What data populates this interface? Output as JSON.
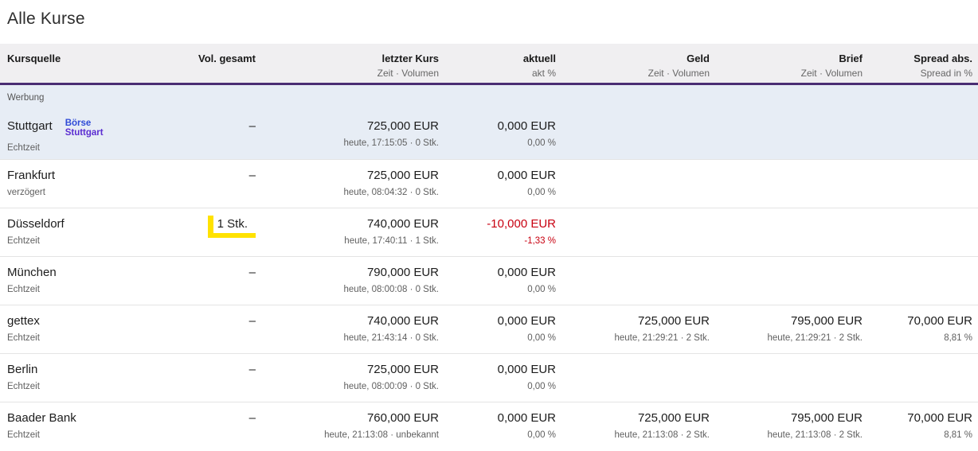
{
  "page": {
    "title": "Alle Kurse"
  },
  "colors": {
    "header_bg": "#f0eff1",
    "header_rule": "#4a2d73",
    "ad_bg": "#e7edf5",
    "negative": "#c80010",
    "highlight": "#ffe200",
    "logo_blue": "#2f4bd7",
    "logo_purple": "#5b2dd1"
  },
  "header": {
    "columns": [
      {
        "label": "Kursquelle",
        "sub": ""
      },
      {
        "label": "Vol. gesamt",
        "sub": ""
      },
      {
        "label": "letzter Kurs",
        "sub": "Zeit · Volumen"
      },
      {
        "label": "aktuell",
        "sub": "akt %"
      },
      {
        "label": "Geld",
        "sub": "Zeit · Volumen"
      },
      {
        "label": "Brief",
        "sub": "Zeit · Volumen"
      },
      {
        "label": "Spread abs.",
        "sub": "Spread in %"
      }
    ]
  },
  "ad": {
    "label": "Werbung",
    "logo_line1": "Börse",
    "logo_line2": "Stuttgart"
  },
  "rows": [
    {
      "source": "Stuttgart",
      "mode": "Echtzeit",
      "vol": "–",
      "last": "725,000 EUR",
      "last_sub": "heute, 17:15:05 · 0 Stk.",
      "akt": "0,000 EUR",
      "akt_sub": "0,00 %",
      "geld": "",
      "geld_sub": "",
      "brief": "",
      "brief_sub": "",
      "spread": "",
      "spread_sub": ""
    },
    {
      "source": "Frankfurt",
      "mode": "verzögert",
      "vol": "–",
      "last": "725,000 EUR",
      "last_sub": "heute, 08:04:32 · 0 Stk.",
      "akt": "0,000 EUR",
      "akt_sub": "0,00 %",
      "geld": "",
      "geld_sub": "",
      "brief": "",
      "brief_sub": "",
      "spread": "",
      "spread_sub": ""
    },
    {
      "source": "Düsseldorf",
      "mode": "Echtzeit",
      "vol": "1 Stk.",
      "last": "740,000 EUR",
      "last_sub": "heute, 17:40:11 · 1 Stk.",
      "akt": "-10,000 EUR",
      "akt_sub": "-1,33 %",
      "geld": "",
      "geld_sub": "",
      "brief": "",
      "brief_sub": "",
      "spread": "",
      "spread_sub": ""
    },
    {
      "source": "München",
      "mode": "Echtzeit",
      "vol": "–",
      "last": "790,000 EUR",
      "last_sub": "heute, 08:00:08 · 0 Stk.",
      "akt": "0,000 EUR",
      "akt_sub": "0,00 %",
      "geld": "",
      "geld_sub": "",
      "brief": "",
      "brief_sub": "",
      "spread": "",
      "spread_sub": ""
    },
    {
      "source": "gettex",
      "mode": "Echtzeit",
      "vol": "–",
      "last": "740,000 EUR",
      "last_sub": "heute, 21:43:14 · 0 Stk.",
      "akt": "0,000 EUR",
      "akt_sub": "0,00 %",
      "geld": "725,000 EUR",
      "geld_sub": "heute, 21:29:21 · 2 Stk.",
      "brief": "795,000 EUR",
      "brief_sub": "heute, 21:29:21 · 2 Stk.",
      "spread": "70,000 EUR",
      "spread_sub": "8,81 %"
    },
    {
      "source": "Berlin",
      "mode": "Echtzeit",
      "vol": "–",
      "last": "725,000 EUR",
      "last_sub": "heute, 08:00:09 · 0 Stk.",
      "akt": "0,000 EUR",
      "akt_sub": "0,00 %",
      "geld": "",
      "geld_sub": "",
      "brief": "",
      "brief_sub": "",
      "spread": "",
      "spread_sub": ""
    },
    {
      "source": "Baader Bank",
      "mode": "Echtzeit",
      "vol": "–",
      "last": "760,000 EUR",
      "last_sub": "heute, 21:13:08 · unbekannt",
      "akt": "0,000 EUR",
      "akt_sub": "0,00 %",
      "geld": "725,000 EUR",
      "geld_sub": "heute, 21:13:08 · 2 Stk.",
      "brief": "795,000 EUR",
      "brief_sub": "heute, 21:13:08 · 2 Stk.",
      "spread": "70,000 EUR",
      "spread_sub": "8,81 %"
    }
  ]
}
